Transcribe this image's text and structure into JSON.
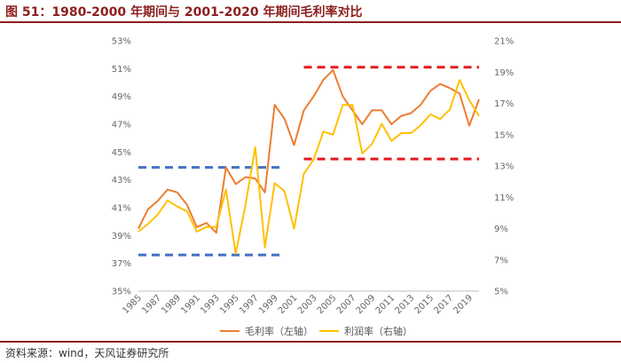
{
  "title": "图 51：1980-2000 年期间与 2001-2020 年期间毛利率对比",
  "source": "资料来源：wind，天风证券研究所",
  "colors": {
    "gross": "#ed7d31",
    "profit": "#ffc000",
    "bandBlue": "#4472c4",
    "bandRed": "#e41a1c"
  },
  "chart_data": {
    "type": "line",
    "x": [
      1985,
      1986,
      1987,
      1988,
      1989,
      1990,
      1991,
      1992,
      1993,
      1994,
      1995,
      1996,
      1997,
      1998,
      1999,
      2000,
      2001,
      2002,
      2003,
      2004,
      2005,
      2006,
      2007,
      2008,
      2009,
      2010,
      2011,
      2012,
      2013,
      2014,
      2015,
      2016,
      2017,
      2018,
      2019,
      2020
    ],
    "x_tick_labels": [
      "1985",
      "1987",
      "1989",
      "1991",
      "1993",
      "1995",
      "1997",
      "1999",
      "2001",
      "2003",
      "2005",
      "2007",
      "2009",
      "2011",
      "2013",
      "2015",
      "2017",
      "2019"
    ],
    "y_left": {
      "ylim": [
        35,
        53
      ],
      "ticks": [
        "35%",
        "37%",
        "39%",
        "41%",
        "43%",
        "45%",
        "47%",
        "49%",
        "51%",
        "53%"
      ]
    },
    "y_right": {
      "ylim": [
        5,
        21
      ],
      "ticks": [
        "5%",
        "7%",
        "9%",
        "11%",
        "13%",
        "15%",
        "17%",
        "19%",
        "21%"
      ]
    },
    "series": [
      {
        "name": "毛利率（左轴）",
        "axis": "left",
        "values": [
          39.5,
          40.9,
          41.5,
          42.3,
          42.1,
          41.2,
          39.6,
          39.9,
          39.2,
          43.9,
          42.7,
          43.2,
          43.1,
          42.1,
          48.4,
          47.4,
          45.5,
          48.0,
          49.0,
          50.2,
          50.9,
          49.0,
          48.0,
          47.0,
          48.0,
          48.0,
          47.0,
          47.6,
          47.8,
          48.4,
          49.4,
          49.9,
          49.6,
          49.2,
          46.9,
          48.8
        ]
      },
      {
        "name": "利润率（右轴）",
        "axis": "right",
        "values": [
          8.8,
          9.3,
          9.9,
          10.8,
          10.4,
          10.1,
          8.8,
          9.1,
          9.1,
          11.5,
          7.4,
          10.5,
          14.2,
          7.8,
          11.9,
          11.4,
          9.0,
          12.5,
          13.4,
          15.2,
          15.0,
          16.9,
          16.9,
          13.8,
          14.4,
          15.7,
          14.6,
          15.1,
          15.1,
          15.6,
          16.3,
          16.0,
          16.6,
          18.5,
          17.2,
          16.2
        ]
      }
    ],
    "reference_lines": [
      {
        "axis": "left",
        "value": 43.9,
        "x_range": [
          1985,
          2000
        ],
        "color": "blue",
        "style": "dashed"
      },
      {
        "axis": "left",
        "value": 37.6,
        "x_range": [
          1985,
          2000
        ],
        "color": "blue",
        "style": "dashed"
      },
      {
        "axis": "left",
        "value": 51.1,
        "x_range": [
          2002,
          2020
        ],
        "color": "red",
        "style": "dashed"
      },
      {
        "axis": "left",
        "value": 44.5,
        "x_range": [
          2002,
          2020
        ],
        "color": "red",
        "style": "dashed"
      }
    ],
    "grid": false,
    "legend_position": "bottom"
  }
}
